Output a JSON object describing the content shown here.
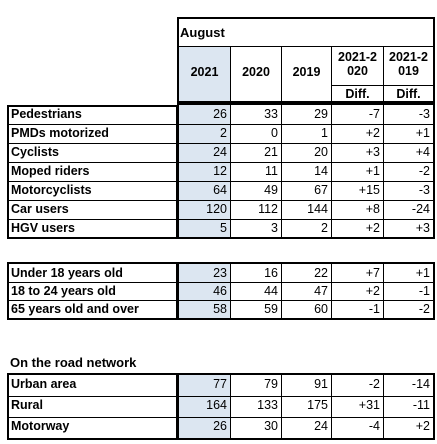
{
  "header": {
    "month": "August",
    "years": [
      "2021",
      "2020",
      "2019"
    ],
    "diff_cols": [
      {
        "range": "2021-2020",
        "sub": "Diff."
      },
      {
        "range": "2021-2019",
        "sub": "Diff."
      }
    ]
  },
  "groups": [
    {
      "title": "",
      "rows": [
        {
          "label": "Pedestrians",
          "values": [
            "26",
            "33",
            "29",
            "-7",
            "-3"
          ]
        },
        {
          "label": "PMDs motorized",
          "values": [
            "2",
            "0",
            "1",
            "+2",
            "+1"
          ]
        },
        {
          "label": "Cyclists",
          "values": [
            "24",
            "21",
            "20",
            "+3",
            "+4"
          ]
        },
        {
          "label": "Moped riders",
          "values": [
            "12",
            "11",
            "14",
            "+1",
            "-2"
          ]
        },
        {
          "label": "Motorcyclists",
          "values": [
            "64",
            "49",
            "67",
            "+15",
            "-3"
          ]
        },
        {
          "label": "Car users",
          "values": [
            "120",
            "112",
            "144",
            "+8",
            "-24"
          ]
        },
        {
          "label": "HGV users",
          "values": [
            "5",
            "3",
            "2",
            "+2",
            "+3"
          ]
        }
      ]
    },
    {
      "title": "",
      "rows": [
        {
          "label": "Under 18 years old",
          "values": [
            "23",
            "16",
            "22",
            "+7",
            "+1"
          ]
        },
        {
          "label": "18 to 24 years old",
          "values": [
            "46",
            "44",
            "47",
            "+2",
            "-1"
          ]
        },
        {
          "label": "65 years old and over",
          "values": [
            "58",
            "59",
            "60",
            "-1",
            "-2"
          ]
        }
      ]
    },
    {
      "title": "On the road network",
      "rows": [
        {
          "label": "Urban area",
          "values": [
            "77",
            "79",
            "91",
            "-2",
            "-14"
          ]
        },
        {
          "label": "Rural",
          "values": [
            "164",
            "133",
            "175",
            "+31",
            "-11"
          ]
        },
        {
          "label": "Motorway",
          "values": [
            "26",
            "30",
            "24",
            "-4",
            "+2"
          ]
        }
      ]
    }
  ]
}
